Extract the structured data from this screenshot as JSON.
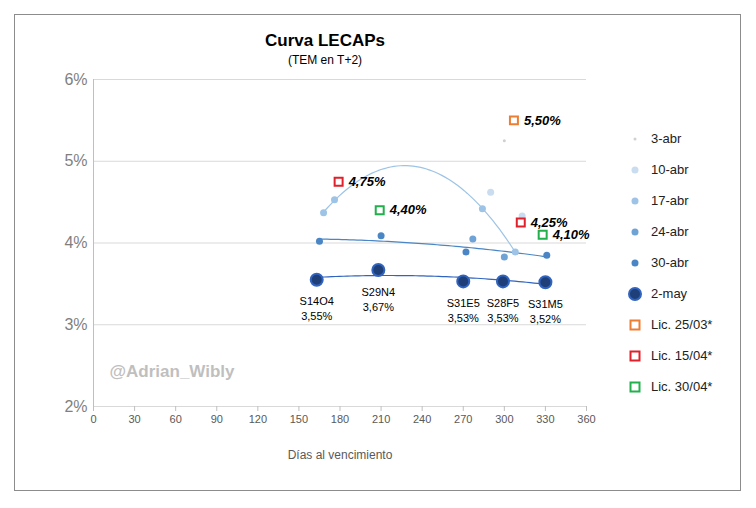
{
  "chart_data": {
    "type": "scatter",
    "title": "Curva LECAPs",
    "subtitle": "(TEM en T+2)",
    "x_label": "Días al vencimiento",
    "annotations": [
      "@Adrian_Wibly"
    ],
    "xlim": [
      0,
      360
    ],
    "xticks": [
      0,
      30,
      60,
      90,
      120,
      150,
      180,
      210,
      240,
      270,
      300,
      330,
      360
    ],
    "ylim": [
      2,
      6
    ],
    "yticks": [
      {
        "value": 2,
        "label": "2%"
      },
      {
        "value": 3,
        "label": "3%"
      },
      {
        "value": 4,
        "label": "4%"
      },
      {
        "value": 5,
        "label": "5%"
      },
      {
        "value": 6,
        "label": "6%"
      }
    ],
    "grid": true,
    "legend": "right",
    "series": [
      {
        "name": "3-abr",
        "color": "#d0d0d0",
        "marker": "point",
        "line_style": "none",
        "x": [
          300
        ],
        "values": [
          5.25
        ]
      },
      {
        "name": "10-abr",
        "color": "#c9dcf0",
        "marker": "circle",
        "line_style": "none",
        "x": [
          290,
          313
        ],
        "values": [
          4.62,
          4.33
        ]
      },
      {
        "name": "17-abr",
        "color": "#9dc3e6",
        "marker": "circle",
        "line_style": "trendline",
        "x": [
          168,
          176,
          284,
          308
        ],
        "values": [
          4.37,
          4.53,
          4.42,
          3.89
        ]
      },
      {
        "name": "24-abr",
        "color": "#6fa3d6",
        "marker": "circle",
        "line_style": "none",
        "x": [
          277,
          300
        ],
        "values": [
          4.05,
          3.83
        ]
      },
      {
        "name": "30-abr",
        "color": "#4a86c5",
        "marker": "circle",
        "line_style": "trendline",
        "x": [
          165,
          210,
          272,
          331
        ],
        "values": [
          4.02,
          4.09,
          3.89,
          3.85
        ]
      },
      {
        "name": "2-may",
        "color": "#1f3f78",
        "marker": "large_circle",
        "line_style": "trendline",
        "data_labels": true,
        "x": [
          163,
          208,
          270,
          299,
          330
        ],
        "values": [
          3.55,
          3.67,
          3.53,
          3.53,
          3.52
        ],
        "labels": [
          "S14O4",
          "S29N4",
          "S31E5",
          "S28F5",
          "S31M5"
        ],
        "value_labels": [
          "3,55%",
          "3,67%",
          "3,53%",
          "3,53%",
          "3,52%"
        ]
      },
      {
        "name": "Lic. 25/03*",
        "color": "#ed7d31",
        "marker": "square",
        "line_style": "none",
        "data_labels": true,
        "x": [
          307
        ],
        "values": [
          5.5
        ],
        "value_labels": [
          "5,50%"
        ]
      },
      {
        "name": "Lic. 15/04*",
        "color": "#e0202a",
        "marker": "square",
        "line_style": "none",
        "data_labels": true,
        "x": [
          179,
          312
        ],
        "values": [
          4.75,
          4.25
        ],
        "value_labels": [
          "4,75%",
          "4,25%"
        ]
      },
      {
        "name": "Lic. 30/04*",
        "color": "#21b04b",
        "marker": "square",
        "line_style": "none",
        "data_labels": true,
        "x": [
          209,
          328
        ],
        "values": [
          4.4,
          4.1
        ],
        "value_labels": [
          "4,40%",
          "4,10%"
        ]
      }
    ]
  }
}
